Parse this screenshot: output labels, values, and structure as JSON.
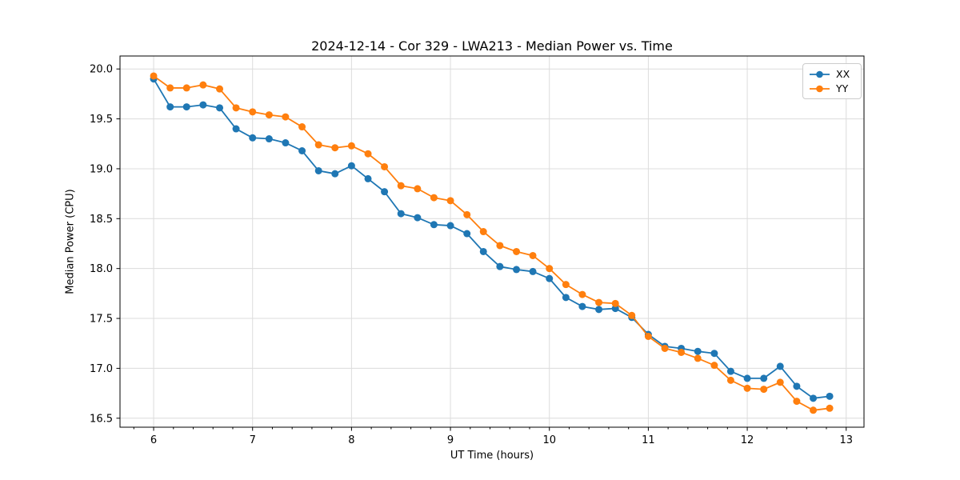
{
  "chart_data": {
    "type": "line",
    "title": "2024-12-14 - Cor 329 - LWA213 - Median Power vs. Time",
    "xlabel": "UT Time (hours)",
    "ylabel": "Median Power (CPU)",
    "xlim": [
      5.66,
      13.18
    ],
    "ylim": [
      16.41,
      20.13
    ],
    "xticks": [
      6,
      7,
      8,
      9,
      10,
      11,
      12,
      13
    ],
    "yticks": [
      16.5,
      17.0,
      17.5,
      18.0,
      18.5,
      19.0,
      19.5,
      20.0
    ],
    "x_minor_tick_step": 0.2,
    "grid": true,
    "legend_position": "upper right",
    "x": [
      6.0,
      6.167,
      6.333,
      6.5,
      6.667,
      6.833,
      7.0,
      7.167,
      7.333,
      7.5,
      7.667,
      7.833,
      8.0,
      8.167,
      8.333,
      8.5,
      8.667,
      8.833,
      9.0,
      9.167,
      9.333,
      9.5,
      9.667,
      9.833,
      10.0,
      10.167,
      10.333,
      10.5,
      10.667,
      10.833,
      11.0,
      11.167,
      11.333,
      11.5,
      11.667,
      11.833,
      12.0,
      12.167,
      12.333,
      12.5,
      12.667,
      12.833
    ],
    "series": [
      {
        "name": "XX",
        "color": "#1f77b4",
        "marker": "circle",
        "values": [
          19.9,
          19.62,
          19.62,
          19.64,
          19.61,
          19.4,
          19.31,
          19.3,
          19.26,
          19.18,
          18.98,
          18.95,
          19.03,
          18.9,
          18.77,
          18.55,
          18.51,
          18.44,
          18.43,
          18.35,
          18.17,
          18.02,
          17.99,
          17.97,
          17.9,
          17.71,
          17.62,
          17.59,
          17.6,
          17.51,
          17.34,
          17.22,
          17.2,
          17.17,
          17.15,
          16.97,
          16.9,
          16.9,
          17.02,
          16.82,
          16.7,
          16.72
        ]
      },
      {
        "name": "YY",
        "color": "#ff7f0e",
        "marker": "circle",
        "values": [
          19.93,
          19.81,
          19.81,
          19.84,
          19.8,
          19.61,
          19.57,
          19.54,
          19.52,
          19.42,
          19.24,
          19.21,
          19.23,
          19.15,
          19.02,
          18.83,
          18.8,
          18.71,
          18.68,
          18.54,
          18.37,
          18.23,
          18.17,
          18.13,
          18.0,
          17.84,
          17.74,
          17.66,
          17.65,
          17.53,
          17.32,
          17.2,
          17.16,
          17.1,
          17.03,
          16.88,
          16.8,
          16.79,
          16.86,
          16.67,
          16.58,
          16.6
        ]
      }
    ]
  }
}
